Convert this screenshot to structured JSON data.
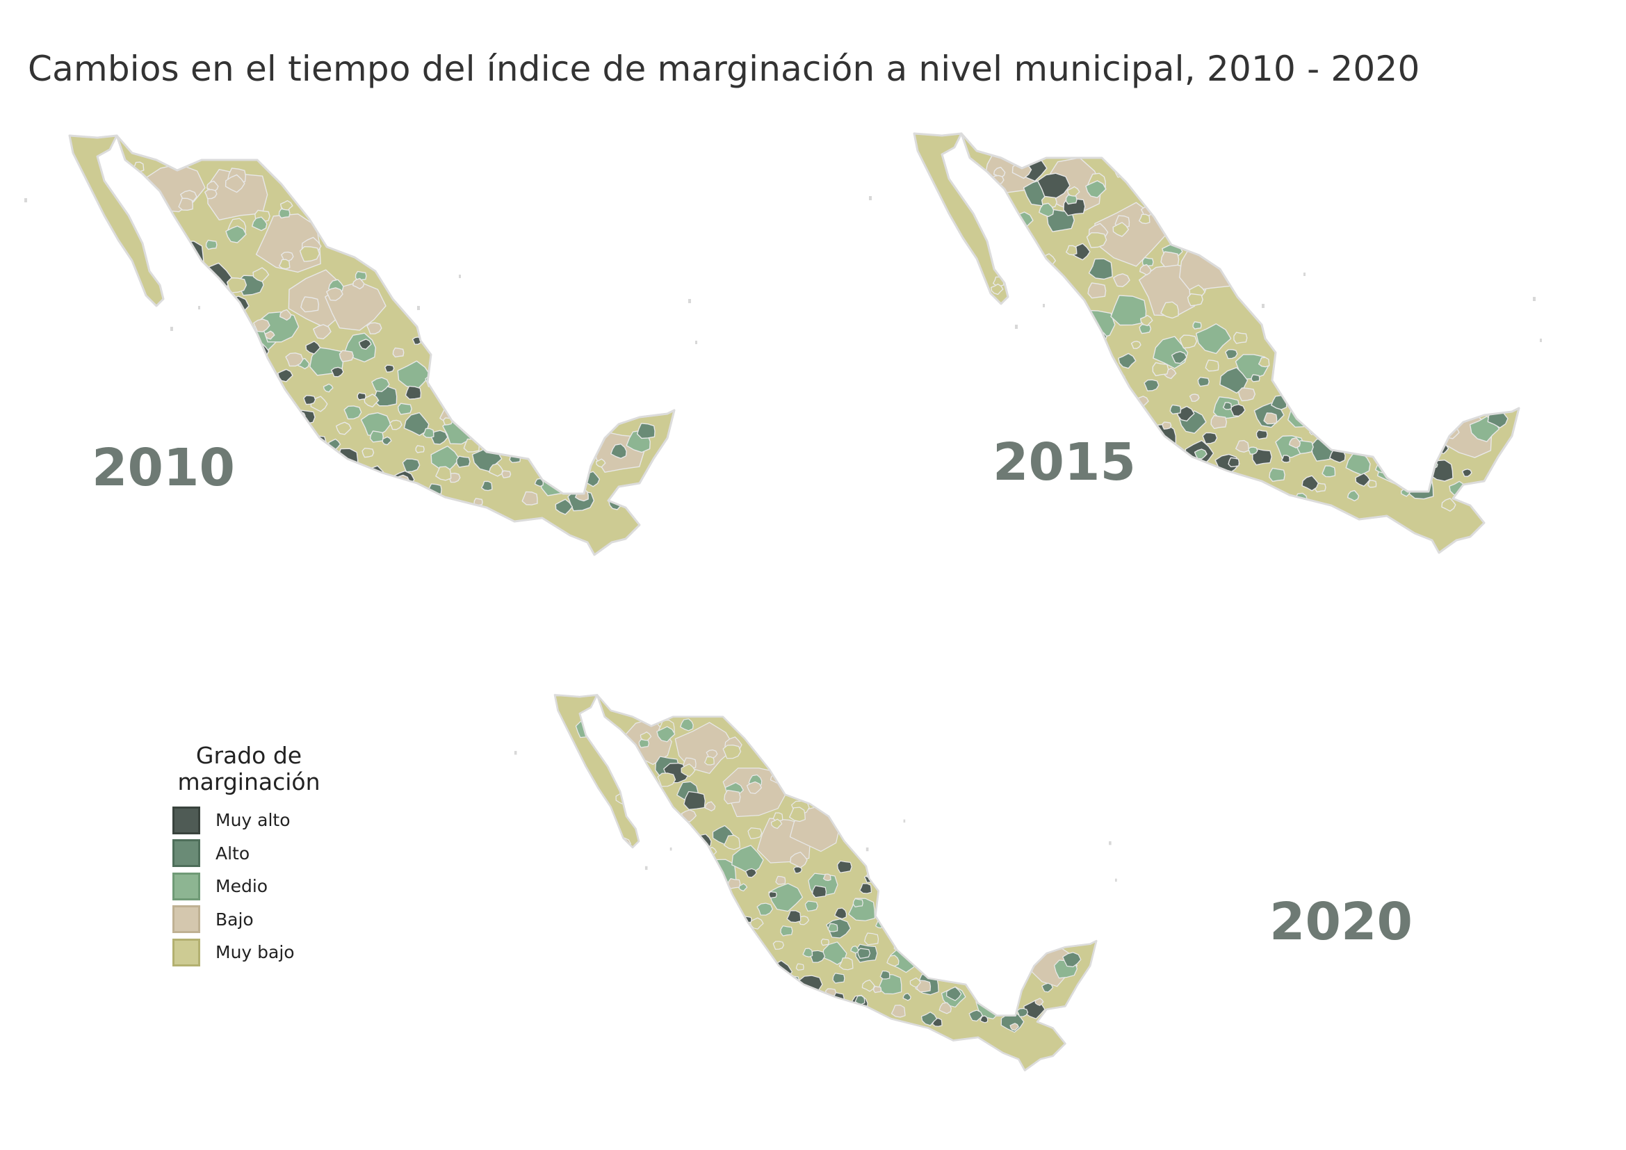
{
  "title": "Cambios en el tiempo del índice de marginación a nivel municipal, 2010 - 2020",
  "maps": [
    {
      "year": "2010",
      "dominant": "Muy bajo"
    },
    {
      "year": "2015",
      "dominant": "Muy bajo"
    },
    {
      "year": "2020",
      "dominant": "Muy bajo"
    }
  ],
  "legend": {
    "title": "Grado de marginación",
    "items": [
      {
        "label": "Muy alto",
        "color": "#4f5b55",
        "border": "#39433d"
      },
      {
        "label": "Alto",
        "color": "#6a8b76",
        "border": "#4e6e5a"
      },
      {
        "label": "Medio",
        "color": "#8db592",
        "border": "#6f9a76"
      },
      {
        "label": "Bajo",
        "color": "#d4c7ae",
        "border": "#bfb193"
      },
      {
        "label": "Muy bajo",
        "color": "#cdcb93",
        "border": "#b3b070"
      }
    ]
  },
  "colors": {
    "region_outline": "#e8e8e8",
    "year_label": "#6e7a74",
    "background": "#ffffff"
  }
}
